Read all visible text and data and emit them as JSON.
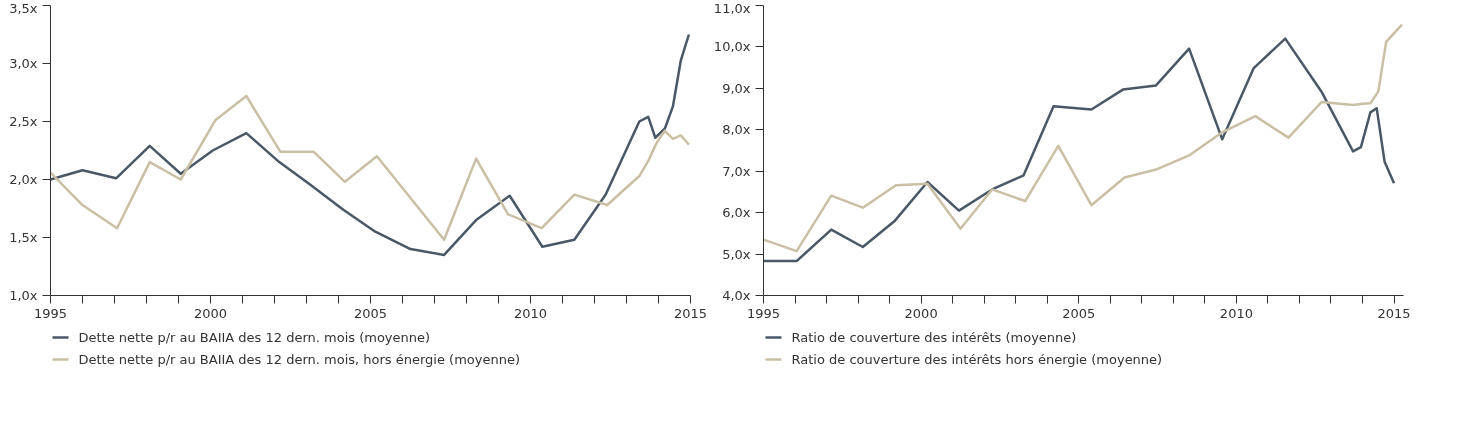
{
  "chart_data": [
    {
      "type": "line",
      "xlim": [
        1995,
        2015
      ],
      "ylim": [
        1.0,
        3.5
      ],
      "xticks": [
        1995,
        {
          "value": 1996,
          "label": null
        },
        {
          "value": 1997,
          "label": null
        },
        {
          "value": 1998,
          "label": null
        },
        {
          "value": 1999,
          "label": null
        },
        2000,
        {
          "value": 2001,
          "label": null
        },
        {
          "value": 2002,
          "label": null
        },
        {
          "value": 2003,
          "label": null
        },
        {
          "value": 2004,
          "label": null
        },
        2005,
        {
          "value": 2006,
          "label": null
        },
        {
          "value": 2007,
          "label": null
        },
        {
          "value": 2008,
          "label": null
        },
        {
          "value": 2009,
          "label": null
        },
        2010,
        {
          "value": 2011,
          "label": null
        },
        {
          "value": 2012,
          "label": null
        },
        {
          "value": 2013,
          "label": null
        },
        {
          "value": 2014,
          "label": null
        },
        2015
      ],
      "yticks": [
        {
          "value": 1.0,
          "label": "1,0x"
        },
        {
          "value": 1.5,
          "label": "1,5x"
        },
        {
          "value": 2.0,
          "label": "2,0x"
        },
        {
          "value": 2.5,
          "label": "2,5x"
        },
        {
          "value": 3.0,
          "label": "3,0x"
        },
        {
          "value": 3.5,
          "label": "3,5x"
        }
      ],
      "grid": false,
      "legend": "bottom",
      "marker": "none",
      "line_style": "solid",
      "series": [
        {
          "name": "Dette nette p/r au BAIIA des 12 dern. mois (moyenne)",
          "color": "#4a5866",
          "x": [
            1995,
            1996,
            1997.05,
            1998.1,
            1999.07,
            2000.07,
            2001.12,
            2002.15,
            2003.1,
            2004.15,
            2005.15,
            2006.25,
            2007.3,
            2008.3,
            2009.35,
            2010.37,
            2011.37,
            2012.35,
            2013.4,
            2013.68,
            2013.9,
            2014.2,
            2014.45,
            2014.7,
            2014.95
          ],
          "values": [
            2.0,
            2.08,
            2.01,
            2.29,
            2.05,
            2.25,
            2.4,
            2.15,
            1.96,
            1.74,
            1.55,
            1.4,
            1.35,
            1.65,
            1.86,
            1.42,
            1.48,
            1.87,
            2.5,
            2.54,
            2.36,
            2.44,
            2.63,
            3.03,
            3.25
          ]
        },
        {
          "name": "Dette nette p/r au BAIIA des 12 dern. mois, hors énergie (moyenne)",
          "color": "#c9bfa5",
          "x": [
            1995,
            1996,
            1997.08,
            1998.1,
            1999.07,
            2000.15,
            2001.12,
            2002.18,
            2003.22,
            2004.2,
            2005.2,
            2006.25,
            2007.3,
            2008.3,
            2009.3,
            2010.35,
            2011.37,
            2012.4,
            2013.4,
            2013.68,
            2013.95,
            2014.2,
            2014.45,
            2014.7,
            2014.95
          ],
          "values": [
            2.06,
            1.78,
            1.58,
            2.15,
            2.0,
            2.51,
            2.72,
            2.24,
            2.24,
            1.98,
            2.2,
            1.84,
            1.48,
            2.18,
            1.7,
            1.58,
            1.87,
            1.78,
            2.03,
            2.16,
            2.32,
            2.42,
            2.35,
            2.38,
            2.3
          ]
        }
      ]
    },
    {
      "type": "line",
      "xlim": [
        1995,
        2015.3
      ],
      "ylim": [
        4.0,
        11.0
      ],
      "xticks": [
        1995,
        {
          "value": 1996,
          "label": null
        },
        {
          "value": 1997,
          "label": null
        },
        {
          "value": 1998,
          "label": null
        },
        {
          "value": 1999,
          "label": null
        },
        2000,
        {
          "value": 2001,
          "label": null
        },
        {
          "value": 2002,
          "label": null
        },
        {
          "value": 2003,
          "label": null
        },
        {
          "value": 2004,
          "label": null
        },
        2005,
        {
          "value": 2006,
          "label": null
        },
        {
          "value": 2007,
          "label": null
        },
        {
          "value": 2008,
          "label": null
        },
        {
          "value": 2009,
          "label": null
        },
        2010,
        {
          "value": 2011,
          "label": null
        },
        {
          "value": 2012,
          "label": null
        },
        {
          "value": 2013,
          "label": null
        },
        {
          "value": 2014,
          "label": null
        },
        2015
      ],
      "yticks": [
        {
          "value": 4.0,
          "label": "4,0x"
        },
        {
          "value": 5.0,
          "label": "5,0x"
        },
        {
          "value": 6.0,
          "label": "6,0x"
        },
        {
          "value": 7.0,
          "label": "7,0x"
        },
        {
          "value": 8.0,
          "label": "8,0x"
        },
        {
          "value": 9.0,
          "label": "9,0x"
        },
        {
          "value": 10.0,
          "label": "10,0x"
        },
        {
          "value": 11.0,
          "label": "11,0x"
        }
      ],
      "grid": false,
      "legend": "bottom",
      "marker": "none",
      "line_style": "solid",
      "series": [
        {
          "name": "Ratio de couverture des intérêts (moyenne)",
          "color": "#4a5866",
          "x": [
            1995,
            1996.05,
            1997.15,
            1998.15,
            1999.15,
            2000.2,
            2001.2,
            2002.25,
            2003.25,
            2004.2,
            2005.4,
            2006.4,
            2007.45,
            2008.5,
            2009.55,
            2010.55,
            2011.55,
            2012.7,
            2013.7,
            2013.95,
            2014.25,
            2014.45,
            2014.7,
            2015.0
          ],
          "values": [
            4.83,
            4.83,
            5.59,
            5.17,
            5.79,
            6.74,
            6.05,
            6.56,
            6.9,
            8.57,
            8.49,
            8.97,
            9.07,
            9.96,
            7.77,
            9.49,
            10.2,
            8.92,
            7.48,
            7.58,
            8.42,
            8.52,
            7.23,
            6.71
          ]
        },
        {
          "name": "Ratio de couverture des intérêts hors énergie (moyenne)",
          "color": "#c9bfa5",
          "x": [
            1995,
            1996.05,
            1997.15,
            1998.15,
            1999.2,
            2000.2,
            2001.25,
            2002.25,
            2003.3,
            2004.35,
            2005.4,
            2006.45,
            2007.45,
            2008.5,
            2009.55,
            2010.6,
            2011.65,
            2012.7,
            2013.7,
            2014.0,
            2014.25,
            2014.5,
            2014.75,
            2015.25
          ],
          "values": [
            5.35,
            5.07,
            6.41,
            6.12,
            6.66,
            6.7,
            5.61,
            6.56,
            6.28,
            7.61,
            6.18,
            6.85,
            7.04,
            7.38,
            7.94,
            8.33,
            7.81,
            8.67,
            8.6,
            8.63,
            8.64,
            8.92,
            10.12,
            10.54
          ]
        }
      ]
    }
  ]
}
